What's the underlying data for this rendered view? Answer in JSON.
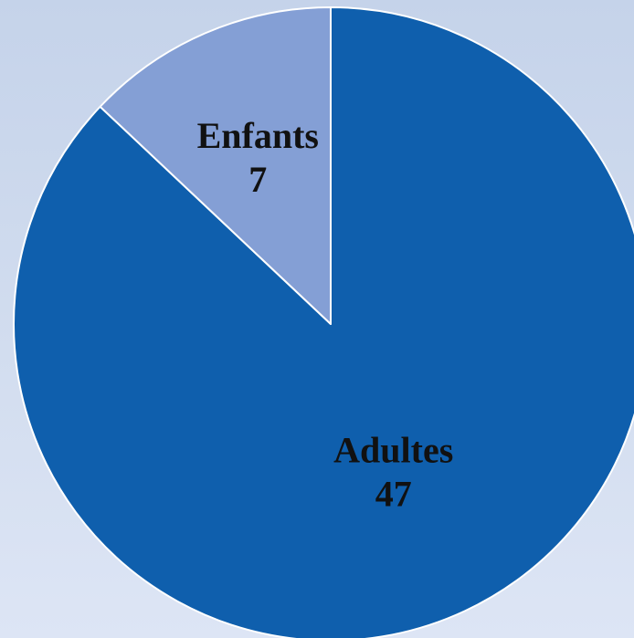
{
  "chart_data": {
    "type": "pie",
    "start_angle": "12 o'clock",
    "direction": "clockwise",
    "slices": [
      {
        "label": "Adultes",
        "value": 47,
        "color": "#0f5fad"
      },
      {
        "label": "Enfants",
        "value": 7,
        "color": "#849fd5"
      }
    ],
    "slice_border_color": "#ffffff",
    "legend": "none"
  }
}
